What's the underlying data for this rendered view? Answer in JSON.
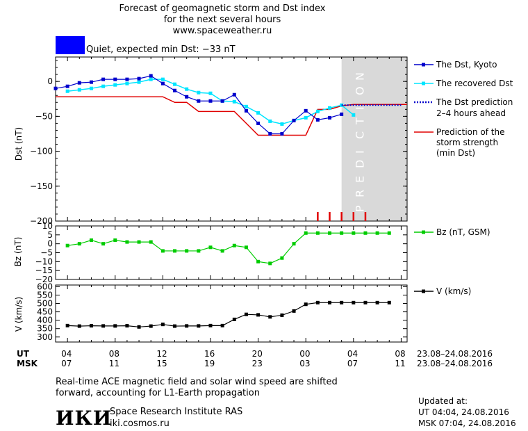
{
  "header": {
    "title_line1": "Forecast of geomagnetic storm and Dst index",
    "title_line2": "for the next several hours",
    "site": "www.spaceweather.ru",
    "status_color": "#0000ff",
    "status_text": "Quiet, expected min Dst: −33 nT"
  },
  "prediction_label": "PREDICTION",
  "legend": {
    "dst_kyoto": "The Dst, Kyoto",
    "recovered": "The recovered Dst",
    "prediction_line1": "The Dst prediction",
    "prediction_line2": "2–4 hours ahead",
    "storm_line1": "Prediction of the",
    "storm_line2": "storm strength",
    "storm_line3": "(min Dst)",
    "bz": "Bz (nT, GSM)",
    "v": "V (km/s)"
  },
  "axis_labels": {
    "dst": "Dst (nT)",
    "bz": "Bz (nT)",
    "v": "V (km/s)"
  },
  "time_axis": {
    "ut_label": "UT",
    "msk_label": "MSK",
    "ut_ticks": [
      "04",
      "08",
      "12",
      "16",
      "20",
      "00",
      "04",
      "08"
    ],
    "msk_ticks": [
      "07",
      "11",
      "15",
      "19",
      "23",
      "03",
      "07",
      "11"
    ],
    "date_range_ut": "23.08–24.08.2016",
    "date_range_msk": "23.08–24.08.2016"
  },
  "footer": {
    "note_line1": "Real-time ACE magnetic field and solar wind speed are shifted",
    "note_line2": "forward, accounting for L1-Earth propagation",
    "logo": "ИКИ",
    "institute": "Space Research Institute RAS",
    "site": "iki.cosmos.ru",
    "updated_label": "Updated at:",
    "updated_ut": "UT   04:04, 24.08.2016",
    "updated_msk": "MSK 07:04, 24.08.2016"
  },
  "colors": {
    "dst_kyoto": "#0000cc",
    "recovered": "#00e5ff",
    "prediction": "#0000cc",
    "storm": "#e00000",
    "bz": "#00cc00",
    "v": "#000000",
    "prediction_zone": "#d9d9d9"
  },
  "chart_data": [
    {
      "type": "line",
      "panel": "Dst",
      "ylabel": "Dst (nT)",
      "ylim": [
        -200,
        35
      ],
      "yticks": [
        0,
        -50,
        -100,
        -150,
        -200
      ],
      "x_unit": "hours since 23.08.2016 03:00 UT",
      "xlim": [
        3,
        32.5
      ],
      "prediction_zone": [
        27,
        32.5
      ],
      "series": [
        {
          "name": "The Dst, Kyoto",
          "x": [
            3,
            4,
            5,
            6,
            7,
            8,
            9,
            10,
            11,
            12,
            13,
            14,
            15,
            16,
            17,
            18,
            19,
            20,
            21,
            22,
            23,
            24,
            25,
            26,
            27
          ],
          "y": [
            -10,
            -7,
            -2,
            -1,
            3,
            3,
            3,
            4,
            8,
            -3,
            -13,
            -22,
            -28,
            -28,
            -28,
            -19,
            -42,
            -60,
            -75,
            -75,
            -56,
            -42,
            -55,
            -52,
            -47
          ]
        },
        {
          "name": "The recovered Dst",
          "x": [
            4,
            5,
            6,
            7,
            8,
            9,
            10,
            11,
            12,
            13,
            14,
            15,
            16,
            17,
            18,
            19,
            20,
            21,
            22,
            23,
            24,
            25,
            26,
            27,
            28
          ],
          "y": [
            -14,
            -12,
            -10,
            -7,
            -5,
            -3,
            -1,
            3,
            3,
            -4,
            -11,
            -16,
            -17,
            -28,
            -29,
            -36,
            -45,
            -57,
            -61,
            -56,
            -52,
            -43,
            -38,
            -34,
            -48
          ]
        },
        {
          "name": "The Dst prediction 2–4 hours ahead",
          "x": [
            27,
            28,
            29,
            30,
            31,
            32
          ],
          "y": [
            -34,
            -34,
            -34,
            -34,
            -34,
            -34
          ]
        },
        {
          "name": "Prediction of the storm strength (min Dst)",
          "x": [
            3,
            12,
            13,
            14,
            15,
            16,
            17,
            18,
            19,
            20,
            21,
            22,
            23,
            24,
            25,
            26,
            27,
            28,
            29,
            30,
            31,
            32.5
          ],
          "y": [
            -22,
            -22,
            -30,
            -30,
            -43,
            -43,
            -43,
            -43,
            -60,
            -77,
            -77,
            -77,
            -77,
            -77,
            -40,
            -40,
            -35,
            -33,
            -33,
            -33,
            -33,
            -33
          ]
        }
      ],
      "storm_ticks_x": [
        25,
        26,
        27,
        28,
        29
      ]
    },
    {
      "type": "line",
      "panel": "Bz",
      "ylabel": "Bz (nT)",
      "ylim": [
        -20,
        10
      ],
      "yticks": [
        10,
        5,
        0,
        -5,
        -10,
        -15,
        -20
      ],
      "series": [
        {
          "name": "Bz (nT, GSM)",
          "x": [
            4,
            5,
            6,
            7,
            8,
            9,
            10,
            11,
            12,
            13,
            14,
            15,
            16,
            17,
            18,
            19,
            20,
            21,
            22,
            23,
            24,
            25,
            26,
            27,
            28,
            29,
            30,
            31
          ],
          "y": [
            -1,
            0,
            2,
            0,
            2,
            1,
            1,
            1,
            -4,
            -4,
            -4,
            -4,
            -2,
            -4,
            -1,
            -2,
            -10,
            -11,
            -8,
            0,
            6,
            6,
            6,
            6,
            6,
            6,
            6,
            6
          ]
        }
      ]
    },
    {
      "type": "line",
      "panel": "V",
      "ylabel": "V (km/s)",
      "ylim": [
        270,
        610
      ],
      "yticks": [
        600,
        550,
        500,
        450,
        400,
        350,
        300
      ],
      "series": [
        {
          "name": "V (km/s)",
          "x": [
            4,
            5,
            6,
            7,
            8,
            9,
            10,
            11,
            12,
            13,
            14,
            15,
            16,
            17,
            18,
            19,
            20,
            21,
            22,
            23,
            24,
            25,
            26,
            27,
            28,
            29,
            30,
            31
          ],
          "y": [
            368,
            365,
            367,
            366,
            366,
            367,
            360,
            365,
            375,
            365,
            366,
            366,
            368,
            368,
            405,
            435,
            432,
            420,
            430,
            455,
            495,
            505,
            505,
            505,
            505,
            505,
            505,
            505
          ]
        }
      ]
    }
  ]
}
